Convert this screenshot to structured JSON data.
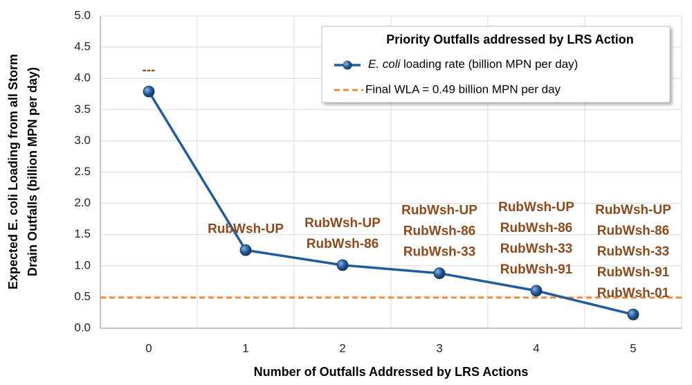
{
  "chart_data": {
    "type": "line",
    "xlabel": "Number of Outfalls Addressed by LRS Actions",
    "ylabel": [
      "Expected E. coli Loading from all Storm",
      "Drain Outfalls (billion MPN per day)"
    ],
    "categories": [
      "0",
      "1",
      "2",
      "3",
      "4",
      "5"
    ],
    "series": [
      {
        "name": "E. coli loading rate (billion MPN per day)",
        "color": "#1f5c99",
        "values": [
          3.79,
          1.25,
          1.01,
          0.88,
          0.6,
          0.22
        ]
      }
    ],
    "annotations": [
      [
        "---"
      ],
      [
        "RubWsh-UP"
      ],
      [
        "RubWsh-UP",
        "RubWsh-86"
      ],
      [
        "RubWsh-UP",
        "RubWsh-86",
        "RubWsh-33"
      ],
      [
        "RubWsh-UP",
        "RubWsh-86",
        "RubWsh-33",
        "RubWsh-91"
      ],
      [
        "RubWsh-UP",
        "RubWsh-86",
        "RubWsh-33",
        "RubWsh-91",
        "RubWsh-01"
      ]
    ],
    "legend_title": "Priority Outfalls addressed by LRS Action",
    "reference_lines": [
      {
        "value": 0.49,
        "label": "Final WLA = 0.49 billion MPN per day",
        "color": "#f08a3c"
      }
    ],
    "ylim": [
      0,
      5
    ],
    "yticks": [
      {
        "value": 0,
        "label": "0.0"
      },
      {
        "value": 0.5,
        "label": "0.5"
      },
      {
        "value": 1,
        "label": "1.0"
      },
      {
        "value": 1.5,
        "label": "1.5"
      },
      {
        "value": 2,
        "label": "2.0"
      },
      {
        "value": 2.5,
        "label": "2.5"
      },
      {
        "value": 3,
        "label": "3.0"
      },
      {
        "value": 3.5,
        "label": "3.5"
      },
      {
        "value": 4,
        "label": "4.0"
      },
      {
        "value": 4.5,
        "label": "4.5"
      },
      {
        "value": 5,
        "label": "5.0"
      }
    ],
    "grid": true
  }
}
